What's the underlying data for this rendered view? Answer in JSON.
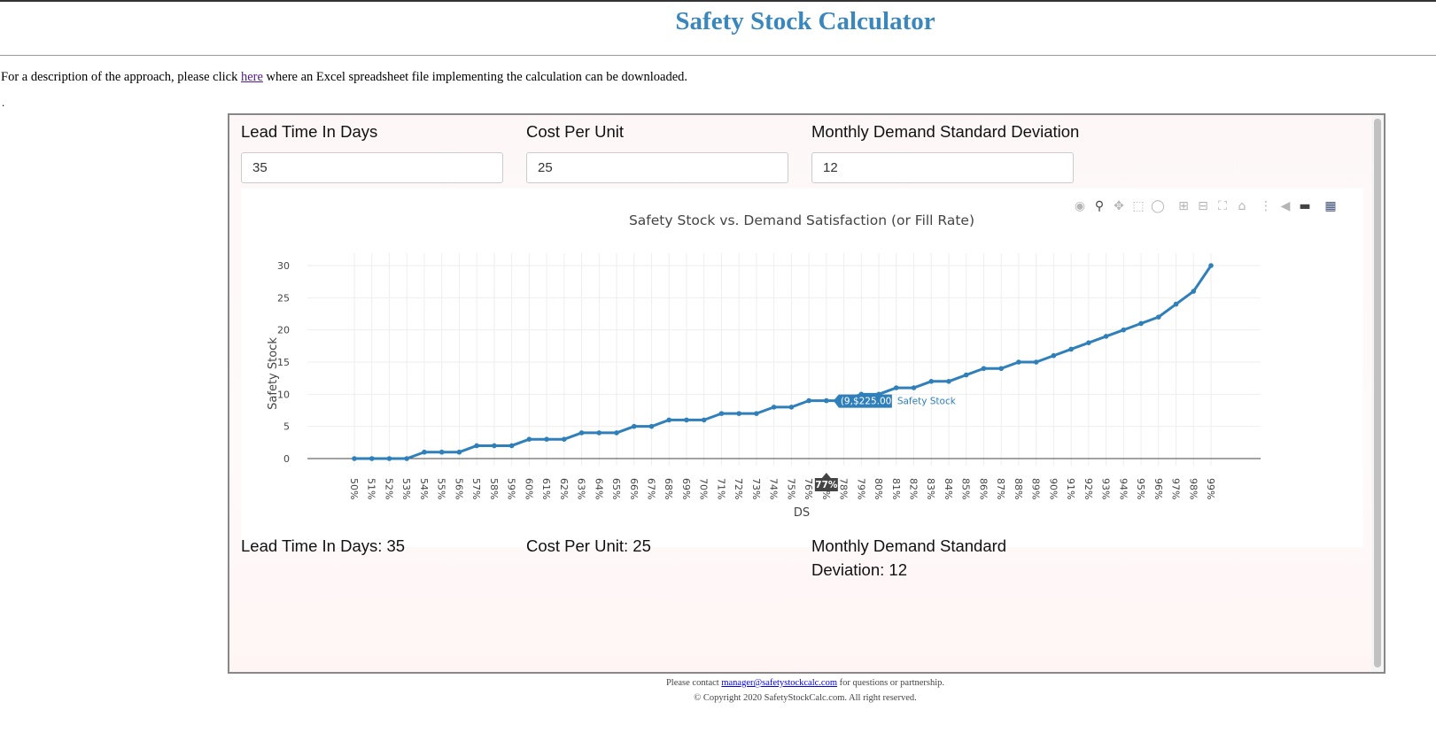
{
  "page": {
    "title": "Safety Stock Calculator",
    "intro_before": "For a description of the approach, please click ",
    "intro_link": "here",
    "intro_after": " where an Excel spreadsheet file implementing the calculation can be downloaded.",
    "dot": "."
  },
  "inputs": {
    "lead_time": {
      "label": "Lead Time In Days",
      "value": "35"
    },
    "cost_per_unit": {
      "label": "Cost Per Unit",
      "value": "25"
    },
    "std_dev": {
      "label": "Monthly Demand Standard Deviation",
      "value": "12"
    }
  },
  "modebar": {
    "icons": [
      "camera-icon",
      "zoom-icon",
      "pan-icon",
      "box-select-icon",
      "lasso-select-icon",
      "zoom-in-icon",
      "zoom-out-icon",
      "autoscale-icon",
      "reset-axes-icon",
      "spike-lines-icon",
      "hover-closest-icon",
      "hover-compare-icon",
      "plotly-logo-icon"
    ]
  },
  "chart_data": {
    "type": "line",
    "title": "Safety Stock vs. Demand Satisfaction (or Fill Rate)",
    "xlabel": "DS",
    "ylabel": "Safety Stock",
    "categories": [
      "50%",
      "51%",
      "52%",
      "53%",
      "54%",
      "55%",
      "56%",
      "57%",
      "58%",
      "59%",
      "60%",
      "61%",
      "62%",
      "63%",
      "64%",
      "65%",
      "66%",
      "67%",
      "68%",
      "69%",
      "70%",
      "71%",
      "72%",
      "73%",
      "74%",
      "75%",
      "76%",
      "77%",
      "78%",
      "79%",
      "80%",
      "81%",
      "82%",
      "83%",
      "84%",
      "85%",
      "86%",
      "87%",
      "88%",
      "89%",
      "90%",
      "91%",
      "92%",
      "93%",
      "94%",
      "95%",
      "96%",
      "97%",
      "98%",
      "99%"
    ],
    "series": [
      {
        "name": "Safety Stock",
        "color": "#2e7fba",
        "values": [
          0,
          0,
          0,
          0,
          1,
          1,
          1,
          2,
          2,
          2,
          3,
          3,
          3,
          4,
          4,
          4,
          5,
          5,
          6,
          6,
          6,
          7,
          7,
          7,
          8,
          8,
          9,
          9,
          9,
          10,
          10,
          11,
          11,
          12,
          12,
          13,
          14,
          14,
          15,
          15,
          16,
          17,
          18,
          19,
          20,
          21,
          22,
          24,
          26,
          30
        ]
      }
    ],
    "yticks": [
      0,
      5,
      10,
      15,
      20,
      25,
      30
    ],
    "ylim": [
      -1,
      31
    ],
    "grid": true,
    "hover": {
      "category": "77%",
      "value_label": "(9,$225.00)",
      "series_label": "Safety Stock"
    }
  },
  "results": {
    "lead_time": "Lead Time In Days: 35",
    "cost_per_unit": "Cost Per Unit: 25",
    "std_dev": "Monthly Demand Standard Deviation: 12"
  },
  "footer": {
    "contact_before": "Please contact ",
    "contact_email": "manager@safetystockcalc.com",
    "contact_after": " for questions or partnership.",
    "copyright": "© Copyright 2020 SafetyStockCalc.com. All right reserved."
  }
}
